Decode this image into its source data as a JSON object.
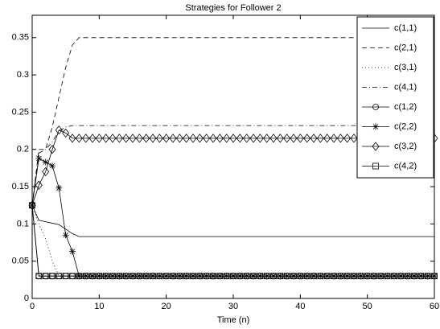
{
  "chart_data": {
    "type": "line",
    "title": "Strategies for Follower 2",
    "xlabel": "Time (n)",
    "x": [
      0,
      1,
      2,
      3,
      4,
      5,
      6,
      7,
      8,
      9,
      10,
      11,
      12,
      13,
      14,
      15,
      16,
      17,
      18,
      19,
      20,
      21,
      22,
      23,
      24,
      25,
      26,
      27,
      28,
      29,
      30,
      31,
      32,
      33,
      34,
      35,
      36,
      37,
      38,
      39,
      40,
      41,
      42,
      43,
      44,
      45,
      46,
      47,
      48,
      49,
      50,
      51,
      52,
      53,
      54,
      55,
      56,
      57,
      58,
      59,
      60
    ],
    "xlim": [
      0,
      60
    ],
    "xticks": [
      0,
      10,
      20,
      30,
      40,
      50,
      60
    ],
    "ylim": [
      0,
      0.38
    ],
    "yticks": [
      0,
      0.05,
      0.1,
      0.15,
      0.2,
      0.25,
      0.3,
      0.35
    ],
    "legend": "northeast",
    "series": [
      {
        "name": "c(1,1)",
        "color": "#000000",
        "style": "solid",
        "marker": null,
        "values": [
          0.125,
          0.105,
          0.103,
          0.101,
          0.099,
          0.093,
          0.087,
          0.083,
          0.083,
          0.083,
          0.083,
          0.083,
          0.083,
          0.083,
          0.083,
          0.083,
          0.083,
          0.083,
          0.083,
          0.083,
          0.083,
          0.083,
          0.083,
          0.083,
          0.083,
          0.083,
          0.083,
          0.083,
          0.083,
          0.083,
          0.083,
          0.083,
          0.083,
          0.083,
          0.083,
          0.083,
          0.083,
          0.083,
          0.083,
          0.083,
          0.083,
          0.083,
          0.083,
          0.083,
          0.083,
          0.083,
          0.083,
          0.083,
          0.083,
          0.083,
          0.083,
          0.083,
          0.083,
          0.083,
          0.083,
          0.083,
          0.083,
          0.083,
          0.083,
          0.083,
          0.083
        ]
      },
      {
        "name": "c(2,1)",
        "color": "#000000",
        "style": "dashed",
        "marker": null,
        "values": [
          0.125,
          0.2,
          0.2,
          0.23,
          0.27,
          0.31,
          0.34,
          0.35,
          0.35,
          0.35,
          0.35,
          0.35,
          0.35,
          0.35,
          0.35,
          0.35,
          0.35,
          0.35,
          0.35,
          0.35,
          0.35,
          0.35,
          0.35,
          0.35,
          0.35,
          0.35,
          0.35,
          0.35,
          0.35,
          0.35,
          0.35,
          0.35,
          0.35,
          0.35,
          0.35,
          0.35,
          0.35,
          0.35,
          0.35,
          0.35,
          0.35,
          0.35,
          0.35,
          0.35,
          0.35,
          0.35,
          0.35,
          0.35,
          0.35,
          0.35,
          0.35,
          0.35,
          0.35,
          0.35,
          0.35,
          0.35,
          0.35,
          0.35,
          0.35,
          0.35,
          0.35
        ]
      },
      {
        "name": "c(3,1)",
        "color": "#000000",
        "style": "dotted",
        "marker": null,
        "values": [
          0.125,
          0.1,
          0.08,
          0.05,
          0.03,
          0.03,
          0.03,
          0.03,
          0.03,
          0.03,
          0.03,
          0.03,
          0.03,
          0.03,
          0.03,
          0.03,
          0.03,
          0.03,
          0.03,
          0.03,
          0.03,
          0.03,
          0.03,
          0.03,
          0.03,
          0.03,
          0.03,
          0.03,
          0.03,
          0.03,
          0.03,
          0.03,
          0.03,
          0.03,
          0.03,
          0.03,
          0.03,
          0.03,
          0.03,
          0.03,
          0.03,
          0.03,
          0.03,
          0.03,
          0.03,
          0.03,
          0.03,
          0.03,
          0.03,
          0.03,
          0.03,
          0.03,
          0.03,
          0.03,
          0.03,
          0.03,
          0.03,
          0.03,
          0.03,
          0.03,
          0.03
        ]
      },
      {
        "name": "c(4,1)",
        "color": "#000000",
        "style": "dashdot",
        "marker": null,
        "values": [
          0.125,
          0.195,
          0.2,
          0.21,
          0.225,
          0.23,
          0.232,
          0.232,
          0.232,
          0.232,
          0.232,
          0.232,
          0.232,
          0.232,
          0.232,
          0.232,
          0.232,
          0.232,
          0.232,
          0.232,
          0.232,
          0.232,
          0.232,
          0.232,
          0.232,
          0.232,
          0.232,
          0.232,
          0.232,
          0.232,
          0.232,
          0.232,
          0.232,
          0.232,
          0.232,
          0.232,
          0.232,
          0.232,
          0.232,
          0.232,
          0.232,
          0.232,
          0.232,
          0.232,
          0.232,
          0.232,
          0.232,
          0.232,
          0.232,
          0.232,
          0.232,
          0.232,
          0.232,
          0.232,
          0.232,
          0.232,
          0.232,
          0.232,
          0.232,
          0.232,
          0.232
        ]
      },
      {
        "name": "c(1,2)",
        "color": "#000000",
        "style": "solid",
        "marker": "circle",
        "values": [
          0.125,
          0.03,
          0.03,
          0.03,
          0.03,
          0.03,
          0.03,
          0.03,
          0.03,
          0.03,
          0.03,
          0.03,
          0.03,
          0.03,
          0.03,
          0.03,
          0.03,
          0.03,
          0.03,
          0.03,
          0.03,
          0.03,
          0.03,
          0.03,
          0.03,
          0.03,
          0.03,
          0.03,
          0.03,
          0.03,
          0.03,
          0.03,
          0.03,
          0.03,
          0.03,
          0.03,
          0.03,
          0.03,
          0.03,
          0.03,
          0.03,
          0.03,
          0.03,
          0.03,
          0.03,
          0.03,
          0.03,
          0.03,
          0.03,
          0.03,
          0.03,
          0.03,
          0.03,
          0.03,
          0.03,
          0.03,
          0.03,
          0.03,
          0.03,
          0.03,
          0.03
        ]
      },
      {
        "name": "c(2,2)",
        "color": "#000000",
        "style": "solid",
        "marker": "star",
        "values": [
          0.125,
          0.188,
          0.183,
          0.178,
          0.148,
          0.085,
          0.063,
          0.03,
          0.03,
          0.03,
          0.03,
          0.03,
          0.03,
          0.03,
          0.03,
          0.03,
          0.03,
          0.03,
          0.03,
          0.03,
          0.03,
          0.03,
          0.03,
          0.03,
          0.03,
          0.03,
          0.03,
          0.03,
          0.03,
          0.03,
          0.03,
          0.03,
          0.03,
          0.03,
          0.03,
          0.03,
          0.03,
          0.03,
          0.03,
          0.03,
          0.03,
          0.03,
          0.03,
          0.03,
          0.03,
          0.03,
          0.03,
          0.03,
          0.03,
          0.03,
          0.03,
          0.03,
          0.03,
          0.03,
          0.03,
          0.03,
          0.03,
          0.03,
          0.03,
          0.03,
          0.03
        ]
      },
      {
        "name": "c(3,2)",
        "color": "#000000",
        "style": "solid",
        "marker": "diamond",
        "values": [
          0.125,
          0.152,
          0.17,
          0.2,
          0.226,
          0.222,
          0.215,
          0.215,
          0.215,
          0.215,
          0.215,
          0.215,
          0.215,
          0.215,
          0.215,
          0.215,
          0.215,
          0.215,
          0.215,
          0.215,
          0.215,
          0.215,
          0.215,
          0.215,
          0.215,
          0.215,
          0.215,
          0.215,
          0.215,
          0.215,
          0.215,
          0.215,
          0.215,
          0.215,
          0.215,
          0.215,
          0.215,
          0.215,
          0.215,
          0.215,
          0.215,
          0.215,
          0.215,
          0.215,
          0.215,
          0.215,
          0.215,
          0.215,
          0.215,
          0.215,
          0.215,
          0.215,
          0.215,
          0.215,
          0.215,
          0.215,
          0.215,
          0.215,
          0.215,
          0.215,
          0.215
        ]
      },
      {
        "name": "c(4,2)",
        "color": "#000000",
        "style": "solid",
        "marker": "square",
        "values": [
          0.125,
          0.03,
          0.03,
          0.03,
          0.03,
          0.03,
          0.03,
          0.03,
          0.03,
          0.03,
          0.03,
          0.03,
          0.03,
          0.03,
          0.03,
          0.03,
          0.03,
          0.03,
          0.03,
          0.03,
          0.03,
          0.03,
          0.03,
          0.03,
          0.03,
          0.03,
          0.03,
          0.03,
          0.03,
          0.03,
          0.03,
          0.03,
          0.03,
          0.03,
          0.03,
          0.03,
          0.03,
          0.03,
          0.03,
          0.03,
          0.03,
          0.03,
          0.03,
          0.03,
          0.03,
          0.03,
          0.03,
          0.03,
          0.03,
          0.03,
          0.03,
          0.03,
          0.03,
          0.03,
          0.03,
          0.03,
          0.03,
          0.03,
          0.03,
          0.03,
          0.03
        ]
      }
    ]
  }
}
